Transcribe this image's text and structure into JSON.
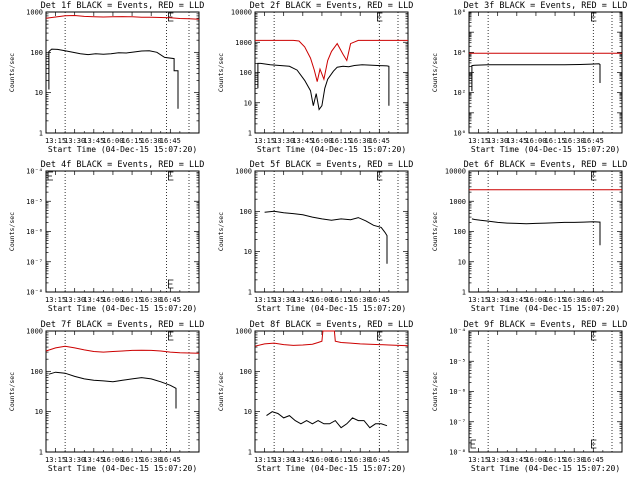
{
  "figure": {
    "background": "#ffffff",
    "axis_color": "#000000"
  },
  "series_colors": {
    "events": "#000000",
    "lld": "#cc0000"
  },
  "x_ticks": [
    "13:15",
    "13:30",
    "13:45",
    "16:00",
    "16:15",
    "16:30",
    "16:45"
  ],
  "x_label": "Start Time (04-Dec-15 15:07:20)",
  "y_label": "Counts/sec",
  "chart_data": [
    {
      "id": "det1f",
      "type": "line",
      "title": "Det 1f BLACK = Events, RED = LLD",
      "y_scale": "log",
      "ylim": [
        1,
        1000
      ],
      "y_ticks": [
        {
          "v": 1,
          "t": "1"
        },
        {
          "v": 10,
          "t": "10"
        },
        {
          "v": 100,
          "t": "100"
        },
        {
          "v": 1000,
          "t": "1000"
        }
      ],
      "markers": [
        1,
        6.3
      ],
      "legend_marker": "E",
      "series": [
        {
          "key": "events",
          "x": [
            0.15,
            0.15,
            0.3,
            0.6,
            1.0,
            1.4,
            1.8,
            2.2,
            2.6,
            3.0,
            3.4,
            3.8,
            4.2,
            4.6,
            5.0,
            5.4,
            5.8,
            6.2,
            6.7,
            6.7,
            6.9,
            6.9
          ],
          "y": [
            12,
            105,
            120,
            118,
            110,
            100,
            92,
            88,
            92,
            90,
            92,
            98,
            96,
            102,
            108,
            110,
            100,
            75,
            70,
            35,
            35,
            4
          ]
        },
        {
          "key": "lld",
          "x": [
            0,
            0.5,
            1.0,
            1.5,
            2.0,
            2.5,
            3.0,
            3.5,
            4.0,
            4.5,
            5.0,
            5.5,
            6.0,
            6.5,
            7.0,
            7.5,
            8.0
          ],
          "y": [
            700,
            750,
            810,
            820,
            780,
            760,
            750,
            760,
            770,
            760,
            740,
            740,
            730,
            720,
            690,
            680,
            660
          ]
        }
      ]
    },
    {
      "id": "det2f",
      "type": "line",
      "title": "Det 2f BLACK = Events, RED = LLD",
      "y_scale": "log",
      "ylim": [
        1,
        10000
      ],
      "y_ticks": [
        {
          "v": 1,
          "t": "1"
        },
        {
          "v": 10,
          "t": "10"
        },
        {
          "v": 100,
          "t": "100"
        },
        {
          "v": 1000,
          "t": "1000"
        },
        {
          "v": 10000,
          "t": "10000"
        }
      ],
      "markers": [
        1,
        6.5
      ],
      "legend_marker": "E",
      "series": [
        {
          "key": "events",
          "x": [
            0.15,
            0.15,
            0.3,
            0.8,
            1.3,
            1.8,
            2.2,
            2.6,
            2.9,
            3.05,
            3.2,
            3.35,
            3.5,
            3.65,
            3.8,
            4.1,
            4.3,
            4.6,
            4.9,
            5.2,
            5.6,
            6.0,
            6.4,
            6.9,
            7.0,
            7.0
          ],
          "y": [
            30,
            200,
            200,
            180,
            170,
            160,
            120,
            55,
            25,
            8,
            20,
            6,
            8,
            30,
            60,
            110,
            150,
            160,
            155,
            170,
            180,
            175,
            170,
            165,
            160,
            8
          ]
        },
        {
          "key": "lld",
          "x": [
            0,
            0.5,
            1.0,
            1.5,
            2.0,
            2.3,
            2.6,
            2.9,
            3.1,
            3.25,
            3.4,
            3.6,
            3.8,
            4.0,
            4.3,
            4.6,
            4.8,
            5.0,
            5.4,
            5.8,
            6.2,
            6.6,
            7.0,
            7.5,
            8.0
          ],
          "y": [
            1150,
            1150,
            1150,
            1150,
            1150,
            1100,
            700,
            300,
            120,
            50,
            130,
            60,
            250,
            500,
            900,
            400,
            250,
            900,
            1150,
            1150,
            1150,
            1150,
            1150,
            1150,
            1150
          ]
        }
      ]
    },
    {
      "id": "det3f",
      "type": "line",
      "title": "Det 3f BLACK = Events, RED = LLD",
      "y_scale": "log",
      "ylim": [
        1,
        1000000
      ],
      "y_ticks": [
        {
          "v": 1,
          "t": "10⁰"
        },
        {
          "v": 100,
          "t": "10²"
        },
        {
          "v": 10000,
          "t": "10⁴"
        },
        {
          "v": 1000000,
          "t": "10⁶"
        }
      ],
      "markers": [
        1,
        6.5
      ],
      "legend_marker": "E",
      "series": [
        {
          "key": "events",
          "x": [
            0.15,
            0.15,
            0.3,
            1.0,
            2.0,
            3.0,
            4.0,
            5.0,
            5.8,
            6.4,
            6.8,
            6.85,
            6.85
          ],
          "y": [
            120,
            2200,
            2300,
            2400,
            2400,
            2450,
            2400,
            2450,
            2500,
            2600,
            2700,
            2500,
            300
          ]
        },
        {
          "key": "lld",
          "x": [
            0,
            8.0
          ],
          "y": [
            9000,
            9000
          ]
        }
      ]
    },
    {
      "id": "det4f",
      "type": "line",
      "title": "Det 4f BLACK = Events, RED = LLD",
      "y_scale": "log",
      "ylim": [
        1e-08,
        0.0001
      ],
      "y_ticks": [
        {
          "v": 1e-08,
          "t": "10⁻⁸"
        },
        {
          "v": 1e-07,
          "t": "10⁻⁷"
        },
        {
          "v": 1e-06,
          "t": "10⁻⁶"
        },
        {
          "v": 1e-05,
          "t": "10⁻⁵"
        },
        {
          "v": 0.0001,
          "t": "10⁻⁴"
        }
      ],
      "markers": [
        1,
        6.3
      ],
      "legend_marker": "E",
      "extra_markers": [
        "left-top",
        "right-bottom"
      ],
      "series": []
    },
    {
      "id": "det5f",
      "type": "line",
      "title": "Det 5f BLACK = Events, RED = LLD",
      "y_scale": "log",
      "ylim": [
        1,
        1000
      ],
      "y_ticks": [
        {
          "v": 1,
          "t": "1"
        },
        {
          "v": 10,
          "t": "10"
        },
        {
          "v": 100,
          "t": "100"
        },
        {
          "v": 1000,
          "t": "1000"
        }
      ],
      "markers": [
        1,
        6.5
      ],
      "legend_marker": "E",
      "series": [
        {
          "key": "events",
          "x": [
            0.5,
            1.0,
            1.5,
            2.0,
            2.5,
            3.0,
            3.5,
            4.0,
            4.5,
            5.0,
            5.4,
            5.8,
            6.2,
            6.6,
            6.8,
            6.9,
            6.9
          ],
          "y": [
            95,
            100,
            92,
            88,
            82,
            72,
            65,
            60,
            65,
            62,
            70,
            58,
            45,
            40,
            30,
            25,
            5
          ]
        }
      ]
    },
    {
      "id": "det6f",
      "type": "line",
      "title": "Det 6f BLACK = Events, RED = LLD",
      "y_scale": "log",
      "ylim": [
        1,
        10000
      ],
      "y_ticks": [
        {
          "v": 1,
          "t": "1"
        },
        {
          "v": 10,
          "t": "10"
        },
        {
          "v": 100,
          "t": "100"
        },
        {
          "v": 1000,
          "t": "1000"
        },
        {
          "v": 10000,
          "t": "10000"
        }
      ],
      "markers": [
        1,
        6.5
      ],
      "legend_marker": "E",
      "series": [
        {
          "key": "events",
          "x": [
            0.15,
            0.3,
            0.6,
            1.0,
            1.5,
            2.0,
            2.5,
            3.0,
            3.5,
            4.0,
            4.5,
            5.0,
            5.5,
            6.0,
            6.5,
            6.85,
            6.85
          ],
          "y": [
            260,
            250,
            235,
            220,
            200,
            190,
            185,
            180,
            185,
            190,
            195,
            200,
            200,
            205,
            210,
            205,
            35
          ]
        },
        {
          "key": "lld",
          "x": [
            0,
            8.0
          ],
          "y": [
            2400,
            2400
          ]
        }
      ]
    },
    {
      "id": "det7f",
      "type": "line",
      "title": "Det 7f BLACK = Events, RED = LLD",
      "y_scale": "log",
      "ylim": [
        1,
        1000
      ],
      "y_ticks": [
        {
          "v": 1,
          "t": "1"
        },
        {
          "v": 10,
          "t": "10"
        },
        {
          "v": 100,
          "t": "100"
        },
        {
          "v": 1000,
          "t": "1000"
        }
      ],
      "markers": [
        1,
        6.3
      ],
      "legend_marker": "E",
      "series": [
        {
          "key": "events",
          "x": [
            0.15,
            0.5,
            1.0,
            1.5,
            2.0,
            2.5,
            3.0,
            3.5,
            4.0,
            4.5,
            5.0,
            5.5,
            6.0,
            6.5,
            6.8,
            6.8
          ],
          "y": [
            85,
            95,
            90,
            75,
            65,
            60,
            58,
            55,
            60,
            65,
            70,
            65,
            55,
            45,
            38,
            12
          ]
        },
        {
          "key": "lld",
          "x": [
            0,
            0.5,
            1.0,
            1.5,
            2.0,
            2.5,
            3.0,
            3.5,
            4.0,
            4.5,
            5.0,
            5.5,
            6.0,
            6.5,
            7.0,
            7.5,
            8.0
          ],
          "y": [
            320,
            380,
            420,
            380,
            340,
            310,
            300,
            310,
            320,
            330,
            335,
            330,
            320,
            300,
            290,
            285,
            280
          ]
        }
      ]
    },
    {
      "id": "det8f",
      "type": "line",
      "title": "Det 8f BLACK = Events, RED = LLD",
      "y_scale": "log",
      "ylim": [
        1,
        1000
      ],
      "y_ticks": [
        {
          "v": 1,
          "t": "1"
        },
        {
          "v": 10,
          "t": "10"
        },
        {
          "v": 100,
          "t": "100"
        },
        {
          "v": 1000,
          "t": "1000"
        }
      ],
      "markers": [
        1,
        6.5
      ],
      "legend_marker": "E",
      "series": [
        {
          "key": "events",
          "x": [
            0.6,
            0.9,
            1.2,
            1.5,
            1.8,
            2.1,
            2.4,
            2.7,
            3.0,
            3.3,
            3.6,
            3.9,
            4.2,
            4.5,
            4.8,
            5.1,
            5.4,
            5.7,
            6.0,
            6.3,
            6.6,
            6.9
          ],
          "y": [
            8,
            10,
            9,
            7,
            8,
            6,
            5,
            6,
            5,
            6,
            5,
            5,
            6,
            4,
            5,
            7,
            6,
            6,
            4,
            5,
            5,
            4.5
          ]
        },
        {
          "key": "lld",
          "x": [
            0,
            0.5,
            1.0,
            1.5,
            2.0,
            2.5,
            3.0,
            3.3,
            3.5,
            3.55,
            3.6,
            4.1,
            4.15,
            4.2,
            4.5,
            5.0,
            5.5,
            6.0,
            6.5,
            7.0,
            7.5,
            8.0
          ],
          "y": [
            420,
            480,
            500,
            460,
            440,
            450,
            470,
            520,
            560,
            1000,
            1000,
            1000,
            1000,
            560,
            520,
            500,
            480,
            470,
            460,
            450,
            440,
            430
          ]
        }
      ]
    },
    {
      "id": "det9f",
      "type": "line",
      "title": "Det 9f BLACK = Events, RED = LLD",
      "y_scale": "log",
      "ylim": [
        1e-08,
        0.0001
      ],
      "y_ticks": [
        {
          "v": 1e-08,
          "t": "10⁻⁸"
        },
        {
          "v": 1e-07,
          "t": "10⁻⁷"
        },
        {
          "v": 1e-06,
          "t": "10⁻⁶"
        },
        {
          "v": 1e-05,
          "t": "10⁻⁵"
        },
        {
          "v": 0.0001,
          "t": "10⁻⁴"
        }
      ],
      "markers": [
        1,
        6.5
      ],
      "legend_marker": "E",
      "extra_markers": [
        "left-bottom",
        "right-bottom"
      ],
      "series": []
    }
  ]
}
